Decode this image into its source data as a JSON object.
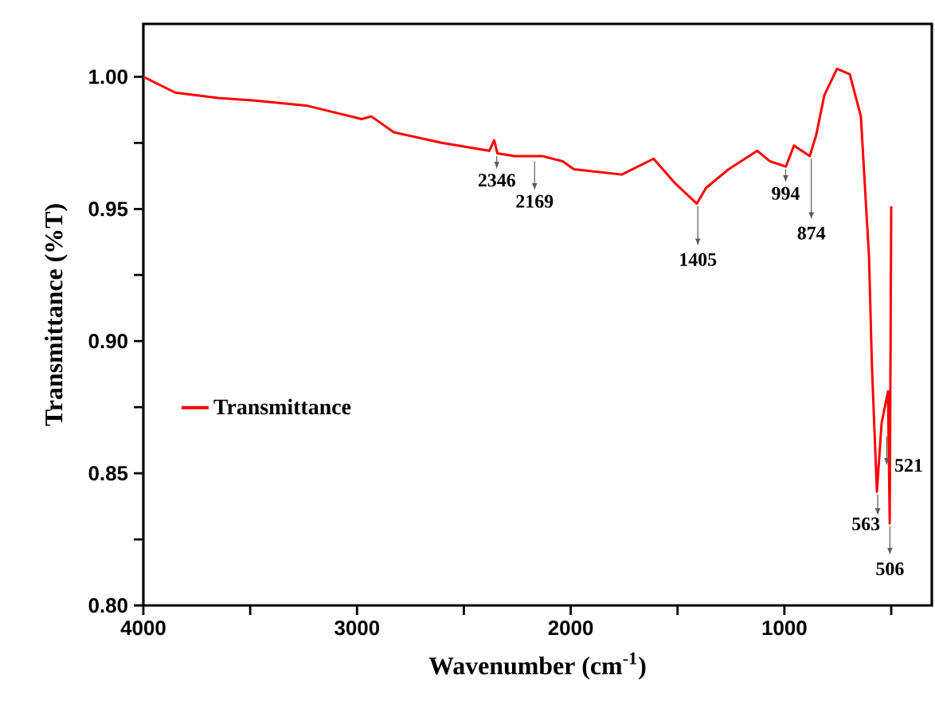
{
  "chart_data": {
    "type": "line",
    "xlabel": "Wavenumber (cm$^{-1}$)",
    "ylabel": "Transmittance (%T)",
    "x": [
      4000,
      3851,
      3649,
      3478,
      3231,
      2978,
      2933,
      2828,
      2604,
      2381,
      2358,
      2343,
      2261,
      2157,
      2134,
      2037,
      1985,
      1761,
      1612,
      1515,
      1410,
      1366,
      1261,
      1127,
      1067,
      993,
      955,
      881,
      851,
      813,
      754,
      694,
      642,
      604,
      590,
      567,
      545,
      515,
      507,
      500
    ],
    "series": [
      {
        "name": "Transmittance",
        "color": "#ff0000",
        "values": [
          1.0,
          0.994,
          0.992,
          0.991,
          0.989,
          0.984,
          0.985,
          0.979,
          0.975,
          0.972,
          0.976,
          0.971,
          0.97,
          0.97,
          0.97,
          0.968,
          0.965,
          0.963,
          0.969,
          0.96,
          0.952,
          0.958,
          0.965,
          0.972,
          0.968,
          0.966,
          0.974,
          0.97,
          0.978,
          0.993,
          1.003,
          1.001,
          0.985,
          0.932,
          0.89,
          0.843,
          0.869,
          0.881,
          0.831,
          0.951
        ]
      }
    ],
    "xlim": [
      4000,
      310
    ],
    "ylim": [
      0.8,
      1.02
    ],
    "xticks": [
      4000,
      {
        "value": 3500,
        "label": null
      },
      3000,
      {
        "value": 2500,
        "label": null
      },
      2000,
      {
        "value": 1500,
        "label": null
      },
      1000,
      {
        "value": 500,
        "label": null
      }
    ],
    "yticks": [
      {
        "value": 0.8,
        "label": "0.80"
      },
      {
        "value": 0.825,
        "label": null
      },
      {
        "value": 0.85,
        "label": "0.85"
      },
      {
        "value": 0.875,
        "label": null
      },
      {
        "value": 0.9,
        "label": "0.90"
      },
      {
        "value": 0.925,
        "label": null
      },
      {
        "value": 0.95,
        "label": "0.95"
      },
      {
        "value": 0.975,
        "label": null
      },
      {
        "value": 1.0,
        "label": "1.00"
      }
    ],
    "annotations": [
      {
        "text": "2346",
        "x": 2346,
        "y": 0.971
      },
      {
        "text": "2169",
        "x": 2169,
        "y": 0.969
      },
      {
        "text": "1405",
        "x": 1405,
        "y": 0.952
      },
      {
        "text": "994",
        "x": 994,
        "y": 0.966
      },
      {
        "text": "874",
        "x": 874,
        "y": 0.97
      },
      {
        "text": "563",
        "x": 563,
        "y": 0.843
      },
      {
        "text": "521",
        "x": 521,
        "y": 0.865
      },
      {
        "text": "506",
        "x": 506,
        "y": 0.831
      }
    ],
    "grid": false,
    "legend": "left",
    "marker": "none",
    "line_style": "solid"
  }
}
